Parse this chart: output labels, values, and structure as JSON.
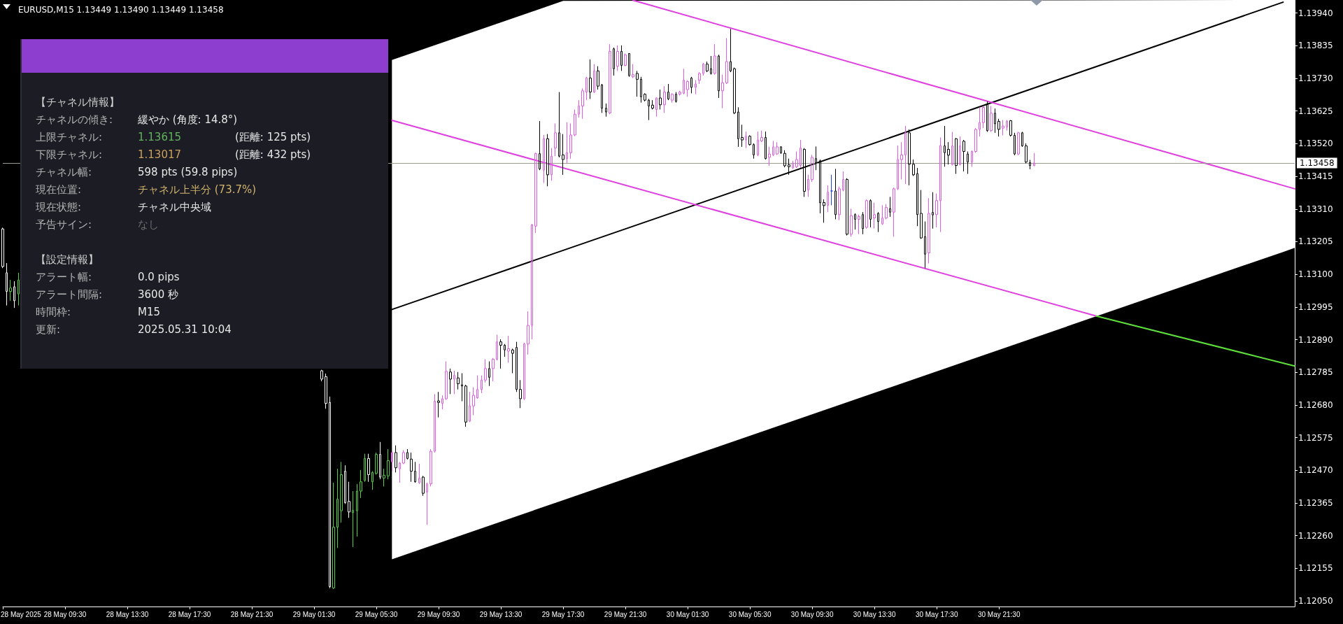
{
  "chart_data": [
    {
      "type": "candlestick",
      "title": "EURUSD,M15 1.13449 1.13490 1.13449 1.13458",
      "line_style": "solid",
      "xlim": [
        "2025-05-28T05:30",
        "2025-05-31T16:30"
      ],
      "xticks": [
        {
          "value": "2025-05-28T05:30",
          "label": "28 May 2025"
        },
        {
          "value": "2025-05-28T09:30",
          "label": "28 May 09:30"
        },
        {
          "value": "2025-05-28T13:30",
          "label": "28 May 13:30"
        },
        {
          "value": "2025-05-28T17:30",
          "label": "28 May 17:30"
        },
        {
          "value": "2025-05-28T21:30",
          "label": "28 May 21:30"
        },
        {
          "value": "2025-05-29T01:30",
          "label": "29 May 01:30"
        },
        {
          "value": "2025-05-29T05:30",
          "label": "29 May 05:30"
        },
        {
          "value": "2025-05-29T09:30",
          "label": "29 May 09:30"
        },
        {
          "value": "2025-05-29T13:30",
          "label": "29 May 13:30"
        },
        {
          "value": "2025-05-29T17:30",
          "label": "29 May 17:30"
        },
        {
          "value": "2025-05-29T21:30",
          "label": "29 May 21:30"
        },
        {
          "value": "2025-05-30T01:30",
          "label": "30 May 01:30"
        },
        {
          "value": "2025-05-30T05:30",
          "label": "30 May 05:30"
        },
        {
          "value": "2025-05-30T09:30",
          "label": "30 May 09:30"
        },
        {
          "value": "2025-05-30T13:30",
          "label": "30 May 13:30"
        },
        {
          "value": "2025-05-30T17:30",
          "label": "30 May 17:30"
        },
        {
          "value": "2025-05-30T21:30",
          "label": "30 May 21:30"
        }
      ],
      "ylim": [
        1.12032,
        1.13982
      ],
      "yticks": [
        {
          "value": 1.1205,
          "label": "1.12050"
        },
        1.12155,
        {
          "value": 1.1226,
          "label": "1.12260"
        },
        1.12365,
        {
          "value": 1.1247,
          "label": "1.12470"
        },
        1.12575,
        {
          "value": 1.1268,
          "label": "1.12680"
        },
        1.12785,
        {
          "value": 1.1289,
          "label": "1.12890"
        },
        1.12995,
        {
          "value": 1.131,
          "label": "1.13100"
        },
        1.13205,
        {
          "value": 1.1331,
          "label": "1.13310"
        },
        1.13415,
        {
          "value": 1.1352,
          "label": "1.13520"
        },
        1.13625,
        {
          "value": 1.1373,
          "label": "1.13730"
        },
        1.13835,
        {
          "value": 1.1394,
          "label": "1.13940"
        }
      ],
      "ref_lines": [
        {
          "axis": "y",
          "value": 1.13458,
          "label": "1.13458",
          "color": "#9c9c8c"
        }
      ],
      "x": [
        "2025-05-28T05:30",
        "2025-05-28T05:45",
        "2025-05-28T06:00",
        "2025-05-28T06:15",
        "2025-05-28T06:30",
        "2025-05-29T02:00",
        "2025-05-29T02:15",
        "2025-05-29T02:30",
        "2025-05-29T02:45",
        "2025-05-29T03:00",
        "2025-05-29T03:15",
        "2025-05-29T03:30",
        "2025-05-29T03:45",
        "2025-05-29T04:00",
        "2025-05-29T04:15",
        "2025-05-29T04:30",
        "2025-05-29T04:45",
        "2025-05-29T05:00",
        "2025-05-29T05:15",
        "2025-05-29T05:30",
        "2025-05-29T05:45",
        "2025-05-29T06:00",
        "2025-05-29T06:15",
        "2025-05-29T06:30",
        "2025-05-29T06:45",
        "2025-05-29T07:00",
        "2025-05-29T07:15",
        "2025-05-29T07:30",
        "2025-05-29T07:45",
        "2025-05-29T08:00",
        "2025-05-29T08:15",
        "2025-05-29T08:30",
        "2025-05-29T08:45",
        "2025-05-29T09:00",
        "2025-05-29T09:15",
        "2025-05-29T09:30",
        "2025-05-29T09:45",
        "2025-05-29T10:00",
        "2025-05-29T10:15",
        "2025-05-29T10:30",
        "2025-05-29T10:45",
        "2025-05-29T11:00",
        "2025-05-29T11:15",
        "2025-05-29T11:30",
        "2025-05-29T11:45",
        "2025-05-29T12:00",
        "2025-05-29T12:15",
        "2025-05-29T12:30",
        "2025-05-29T12:45",
        "2025-05-29T13:00",
        "2025-05-29T13:15",
        "2025-05-29T13:30",
        "2025-05-29T13:45",
        "2025-05-29T14:00",
        "2025-05-29T14:15",
        "2025-05-29T14:30",
        "2025-05-29T14:45",
        "2025-05-29T15:00",
        "2025-05-29T15:15",
        "2025-05-29T15:30",
        "2025-05-29T15:45",
        "2025-05-29T16:00",
        "2025-05-29T16:15",
        "2025-05-29T16:30",
        "2025-05-29T16:45",
        "2025-05-29T17:00",
        "2025-05-29T17:15",
        "2025-05-29T17:30",
        "2025-05-29T17:45",
        "2025-05-29T18:00",
        "2025-05-29T18:15",
        "2025-05-29T18:30",
        "2025-05-29T18:45",
        "2025-05-29T19:00",
        "2025-05-29T19:15",
        "2025-05-29T19:30",
        "2025-05-29T19:45",
        "2025-05-29T20:00",
        "2025-05-29T20:15",
        "2025-05-29T20:30",
        "2025-05-29T20:45",
        "2025-05-29T21:00",
        "2025-05-29T21:15",
        "2025-05-29T21:30",
        "2025-05-29T21:45",
        "2025-05-29T22:00",
        "2025-05-29T22:15",
        "2025-05-29T22:30",
        "2025-05-29T22:45",
        "2025-05-29T23:00",
        "2025-05-29T23:15",
        "2025-05-29T23:30",
        "2025-05-29T23:45",
        "2025-05-30T00:00",
        "2025-05-30T00:15",
        "2025-05-30T00:30",
        "2025-05-30T00:45",
        "2025-05-30T01:00",
        "2025-05-30T01:15",
        "2025-05-30T01:30",
        "2025-05-30T01:45",
        "2025-05-30T02:00",
        "2025-05-30T02:15",
        "2025-05-30T02:30",
        "2025-05-30T02:45",
        "2025-05-30T03:00",
        "2025-05-30T03:15",
        "2025-05-30T03:30",
        "2025-05-30T03:45",
        "2025-05-30T04:00",
        "2025-05-30T04:15",
        "2025-05-30T04:30",
        "2025-05-30T04:45",
        "2025-05-30T05:00",
        "2025-05-30T05:15",
        "2025-05-30T05:30",
        "2025-05-30T05:45",
        "2025-05-30T06:00",
        "2025-05-30T06:15",
        "2025-05-30T06:30",
        "2025-05-30T06:45",
        "2025-05-30T07:00",
        "2025-05-30T07:15",
        "2025-05-30T07:30",
        "2025-05-30T07:45",
        "2025-05-30T08:00",
        "2025-05-30T08:15",
        "2025-05-30T08:30",
        "2025-05-30T08:45",
        "2025-05-30T09:00",
        "2025-05-30T09:15",
        "2025-05-30T09:30",
        "2025-05-30T09:45",
        "2025-05-30T10:00",
        "2025-05-30T10:15",
        "2025-05-30T10:30",
        "2025-05-30T10:45",
        "2025-05-30T11:00",
        "2025-05-30T11:15",
        "2025-05-30T11:30",
        "2025-05-30T11:45",
        "2025-05-30T12:00",
        "2025-05-30T12:15",
        "2025-05-30T12:30",
        "2025-05-30T12:45",
        "2025-05-30T13:00",
        "2025-05-30T13:15",
        "2025-05-30T13:30",
        "2025-05-30T13:45",
        "2025-05-30T14:00",
        "2025-05-30T14:15",
        "2025-05-30T14:30",
        "2025-05-30T14:45",
        "2025-05-30T15:00",
        "2025-05-30T15:15",
        "2025-05-30T15:30",
        "2025-05-30T15:45",
        "2025-05-30T16:00",
        "2025-05-30T16:15",
        "2025-05-30T16:30",
        "2025-05-30T16:45",
        "2025-05-30T17:00",
        "2025-05-30T17:15",
        "2025-05-30T17:30",
        "2025-05-30T17:45",
        "2025-05-30T18:00",
        "2025-05-30T18:15",
        "2025-05-30T18:30",
        "2025-05-30T18:45",
        "2025-05-30T19:00",
        "2025-05-30T19:15",
        "2025-05-30T19:30",
        "2025-05-30T19:45",
        "2025-05-30T20:00",
        "2025-05-30T20:15",
        "2025-05-30T20:30",
        "2025-05-30T20:45",
        "2025-05-30T21:00",
        "2025-05-30T21:15",
        "2025-05-30T21:30",
        "2025-05-30T21:45",
        "2025-05-30T22:00",
        "2025-05-30T22:15",
        "2025-05-30T22:30",
        "2025-05-30T22:45",
        "2025-05-30T23:00",
        "2025-05-30T23:15",
        "2025-05-30T23:30",
        "2025-05-30T23:45"
      ],
      "ohlc": [
        [
          1.13246,
          1.1325,
          1.1312,
          1.13125
        ],
        [
          1.13105,
          1.13136,
          1.13,
          1.13045
        ],
        [
          1.13045,
          1.13082,
          1.13015,
          1.13056
        ],
        [
          1.1306,
          1.13078,
          1.12992,
          1.13015
        ],
        [
          1.13037,
          1.13105,
          1.13,
          1.13082
        ],
        [
          1.1279,
          1.12793,
          1.12756,
          1.12763
        ],
        [
          1.12771,
          1.12781,
          1.12668,
          1.12685
        ],
        [
          1.12688,
          1.12707,
          1.12091,
          1.12096
        ],
        [
          1.12092,
          1.1243,
          1.12088,
          1.12287
        ],
        [
          1.12287,
          1.12475,
          1.1222,
          1.12377
        ],
        [
          1.1234,
          1.12497,
          1.12302,
          1.12456
        ],
        [
          1.12467,
          1.12486,
          1.12362,
          1.12366
        ],
        [
          1.1237,
          1.12433,
          1.12317,
          1.12336
        ],
        [
          1.12334,
          1.12403,
          1.12223,
          1.12341
        ],
        [
          1.1234,
          1.12426,
          1.12257,
          1.12403
        ],
        [
          1.12403,
          1.12471,
          1.12381,
          1.12433
        ],
        [
          1.12437,
          1.12523,
          1.12433,
          1.12508
        ],
        [
          1.12508,
          1.12523,
          1.12433,
          1.12456
        ],
        [
          1.12433,
          1.12467,
          1.12407,
          1.12463
        ],
        [
          1.1246,
          1.12527,
          1.12456,
          1.12521
        ],
        [
          1.12521,
          1.12561,
          1.12441,
          1.12448
        ],
        [
          1.12445,
          1.12475,
          1.12418,
          1.12454
        ],
        [
          1.12452,
          1.12538,
          1.12441,
          1.12501
        ],
        [
          1.12497,
          1.12531,
          1.12467,
          1.12527
        ],
        [
          1.12527,
          1.1255,
          1.12463,
          1.12478
        ],
        [
          1.12475,
          1.12497,
          1.1243,
          1.12493
        ],
        [
          1.12493,
          1.12535,
          1.1249,
          1.12527
        ],
        [
          1.12527,
          1.12538,
          1.12505,
          1.12508
        ],
        [
          1.12506,
          1.12527,
          1.12433,
          1.12467
        ],
        [
          1.12467,
          1.12497,
          1.1243,
          1.12433
        ],
        [
          1.1243,
          1.12491,
          1.12426,
          1.12445
        ],
        [
          1.12448,
          1.12452,
          1.12388,
          1.12396
        ],
        [
          1.124,
          1.1243,
          1.12295,
          1.12426
        ],
        [
          1.12426,
          1.12538,
          1.12418,
          1.12531
        ],
        [
          1.12531,
          1.12715,
          1.12527,
          1.12692
        ],
        [
          1.12693,
          1.12722,
          1.1264,
          1.12688
        ],
        [
          1.12685,
          1.12711,
          1.12666,
          1.127
        ],
        [
          1.127,
          1.1282,
          1.12696,
          1.12788
        ],
        [
          1.12786,
          1.12797,
          1.12715,
          1.12763
        ],
        [
          1.12763,
          1.1279,
          1.12715,
          1.12775
        ],
        [
          1.12767,
          1.12786,
          1.1273,
          1.12748
        ],
        [
          1.12745,
          1.12782,
          1.12692,
          1.12741
        ],
        [
          1.12741,
          1.12745,
          1.1261,
          1.12625
        ],
        [
          1.12628,
          1.12722,
          1.12625,
          1.12677
        ],
        [
          1.12677,
          1.12737,
          1.12647,
          1.12711
        ],
        [
          1.12703,
          1.12775,
          1.127,
          1.1273
        ],
        [
          1.1273,
          1.12775,
          1.12718,
          1.1276
        ],
        [
          1.1276,
          1.12827,
          1.12752,
          1.12797
        ],
        [
          1.12797,
          1.1282,
          1.12741,
          1.12769
        ],
        [
          1.12797,
          1.12831,
          1.12756,
          1.12827
        ],
        [
          1.12827,
          1.12906,
          1.12823,
          1.12883
        ],
        [
          1.12883,
          1.12891,
          1.12797,
          1.12872
        ],
        [
          1.12872,
          1.12876,
          1.12835,
          1.12857
        ],
        [
          1.12853,
          1.12902,
          1.12816,
          1.12861
        ],
        [
          1.12857,
          1.12861,
          1.12782,
          1.12846
        ],
        [
          1.12865,
          1.12883,
          1.12722,
          1.1273
        ],
        [
          1.1273,
          1.1276,
          1.1267,
          1.127
        ],
        [
          1.127,
          1.1288,
          1.12696,
          1.12876
        ],
        [
          1.12876,
          1.12981,
          1.12842,
          1.12936
        ],
        [
          1.12936,
          1.13262,
          1.12891,
          1.13259
        ],
        [
          1.13255,
          1.13491,
          1.13233,
          1.13488
        ],
        [
          1.13488,
          1.13593,
          1.13435,
          1.13439
        ],
        [
          1.13435,
          1.13548,
          1.13394,
          1.13536
        ],
        [
          1.13536,
          1.13551,
          1.13383,
          1.1342
        ],
        [
          1.1342,
          1.13506,
          1.13401,
          1.1348
        ],
        [
          1.13506,
          1.13585,
          1.1348,
          1.13555
        ],
        [
          1.13555,
          1.13686,
          1.13476,
          1.1348
        ],
        [
          1.13484,
          1.13551,
          1.1342,
          1.13469
        ],
        [
          1.13472,
          1.13589,
          1.13457,
          1.13491
        ],
        [
          1.13491,
          1.13585,
          1.13472,
          1.13548
        ],
        [
          1.13548,
          1.1363,
          1.13544,
          1.13615
        ],
        [
          1.13615,
          1.1366,
          1.13604,
          1.13641
        ],
        [
          1.13641,
          1.13698,
          1.136,
          1.1369
        ],
        [
          1.13686,
          1.13735,
          1.1366,
          1.13731
        ],
        [
          1.13731,
          1.13791,
          1.13664,
          1.13686
        ],
        [
          1.13686,
          1.13776,
          1.13683,
          1.13754
        ],
        [
          1.13754,
          1.13769,
          1.13694,
          1.13705
        ],
        [
          1.13709,
          1.13712,
          1.13619,
          1.13634
        ],
        [
          1.13634,
          1.13649,
          1.13607,
          1.13622
        ],
        [
          1.13619,
          1.1384,
          1.13615,
          1.13817
        ],
        [
          1.13825,
          1.13829,
          1.13739,
          1.13761
        ],
        [
          1.13769,
          1.13836,
          1.13754,
          1.13817
        ],
        [
          1.13817,
          1.13836,
          1.13754,
          1.13772
        ],
        [
          1.13772,
          1.1381,
          1.13769,
          1.13806
        ],
        [
          1.1381,
          1.13811,
          1.13735,
          1.13739
        ],
        [
          1.13735,
          1.13776,
          1.13731,
          1.13742
        ],
        [
          1.13746,
          1.13754,
          1.13671,
          1.13727
        ],
        [
          1.13727,
          1.13735,
          1.13652,
          1.13671
        ],
        [
          1.13679,
          1.13682,
          1.13656,
          1.1366
        ],
        [
          1.1366,
          1.13664,
          1.13596,
          1.13641
        ],
        [
          1.13644,
          1.1366,
          1.1363,
          1.13634
        ],
        [
          1.1363,
          1.13669,
          1.13607,
          1.13667
        ],
        [
          1.13667,
          1.13694,
          1.1363,
          1.13645
        ],
        [
          1.13645,
          1.13705,
          1.13619,
          1.13686
        ],
        [
          1.13686,
          1.13712,
          1.1366,
          1.13664
        ],
        [
          1.1366,
          1.13682,
          1.13652,
          1.13679
        ],
        [
          1.13679,
          1.13686,
          1.13652,
          1.13656
        ],
        [
          1.13679,
          1.1369,
          1.13675,
          1.13686
        ],
        [
          1.13682,
          1.13761,
          1.13679,
          1.13724
        ],
        [
          1.13694,
          1.13724,
          1.13671,
          1.1372
        ],
        [
          1.13731,
          1.13735,
          1.13682,
          1.13701
        ],
        [
          1.13701,
          1.13724,
          1.13679,
          1.13712
        ],
        [
          1.13724,
          1.1375,
          1.13712,
          1.13746
        ],
        [
          1.13746,
          1.1378,
          1.13739,
          1.13776
        ],
        [
          1.13776,
          1.13784,
          1.1375,
          1.13754
        ],
        [
          1.13761,
          1.13802,
          1.13742,
          1.13746
        ],
        [
          1.13746,
          1.1384,
          1.13742,
          1.13802
        ],
        [
          1.13802,
          1.13806,
          1.13667,
          1.1369
        ],
        [
          1.1369,
          1.13742,
          1.13634,
          1.13716
        ],
        [
          1.13716,
          1.13859,
          1.13712,
          1.13784
        ],
        [
          1.13784,
          1.13889,
          1.1375,
          1.13754
        ],
        [
          1.13761,
          1.13765,
          1.13615,
          1.13619
        ],
        [
          1.13622,
          1.13637,
          1.1351,
          1.13536
        ],
        [
          1.1354,
          1.13581,
          1.1351,
          1.13532
        ],
        [
          1.13532,
          1.13559,
          1.13506,
          1.13544
        ],
        [
          1.13544,
          1.13547,
          1.13514,
          1.13517
        ],
        [
          1.13517,
          1.13521,
          1.13472,
          1.13484
        ],
        [
          1.13484,
          1.13559,
          1.1348,
          1.13532
        ],
        [
          1.13529,
          1.13562,
          1.13525,
          1.1354
        ],
        [
          1.1354,
          1.13559,
          1.13469,
          1.13472
        ],
        [
          1.13476,
          1.1351,
          1.13449,
          1.13487
        ],
        [
          1.13484,
          1.13529,
          1.1348,
          1.1351
        ],
        [
          1.13487,
          1.13525,
          1.13484,
          1.1351
        ],
        [
          1.1351,
          1.13511,
          1.13487,
          1.13491
        ],
        [
          1.13489,
          1.13499,
          1.13444,
          1.13449
        ],
        [
          1.13452,
          1.13472,
          1.1342,
          1.13446
        ],
        [
          1.13442,
          1.13465,
          1.13439,
          1.13457
        ],
        [
          1.13446,
          1.13495,
          1.13442,
          1.13469
        ],
        [
          1.1345,
          1.13532,
          1.13442,
          1.13506
        ],
        [
          1.13502,
          1.13506,
          1.13349,
          1.13367
        ],
        [
          1.13371,
          1.1342,
          1.13349,
          1.13405
        ],
        [
          1.13405,
          1.13484,
          1.13397,
          1.13476
        ],
        [
          1.13472,
          1.13511,
          1.13435,
          1.13457
        ],
        [
          1.13465,
          1.13469,
          1.13296,
          1.1333
        ],
        [
          1.13331,
          1.13341,
          1.13266,
          1.13321
        ],
        [
          1.13322,
          1.13386,
          1.133,
          1.13364
        ],
        [
          1.13368,
          1.1342,
          1.13322,
          1.13368
        ],
        [
          1.13368,
          1.13439,
          1.13277,
          1.13292
        ],
        [
          1.13292,
          1.13382,
          1.13274,
          1.13375
        ],
        [
          1.13371,
          1.13431,
          1.13367,
          1.13405
        ],
        [
          1.13405,
          1.13409,
          1.13225,
          1.13229
        ],
        [
          1.13229,
          1.13311,
          1.13221,
          1.13289
        ],
        [
          1.13292,
          1.13296,
          1.13244,
          1.13277
        ],
        [
          1.13277,
          1.13292,
          1.13229,
          1.13286
        ],
        [
          1.13292,
          1.133,
          1.13229,
          1.13247
        ],
        [
          1.13251,
          1.13341,
          1.13247,
          1.13337
        ],
        [
          1.13337,
          1.13341,
          1.13251,
          1.13277
        ],
        [
          1.13281,
          1.1333,
          1.13247,
          1.13292
        ],
        [
          1.13296,
          1.133,
          1.13236,
          1.1327
        ],
        [
          1.13262,
          1.13322,
          1.13259,
          1.13281
        ],
        [
          1.13281,
          1.13326,
          1.13277,
          1.13315
        ],
        [
          1.13311,
          1.13349,
          1.13285,
          1.133
        ],
        [
          1.133,
          1.13379,
          1.13221,
          1.13375
        ],
        [
          1.13375,
          1.13514,
          1.13371,
          1.13469
        ],
        [
          1.13469,
          1.13525,
          1.13405,
          1.13484
        ],
        [
          1.13484,
          1.13577,
          1.1339,
          1.13555
        ],
        [
          1.13555,
          1.13566,
          1.13386,
          1.13454
        ],
        [
          1.13454,
          1.13469,
          1.13416,
          1.1342
        ],
        [
          1.13424,
          1.13442,
          1.13255,
          1.13292
        ],
        [
          1.13296,
          1.13371,
          1.13214,
          1.13217
        ],
        [
          1.13221,
          1.1327,
          1.1312,
          1.13165
        ],
        [
          1.13169,
          1.13345,
          1.13135,
          1.13296
        ],
        [
          1.13299,
          1.13364,
          1.13247,
          1.13291
        ],
        [
          1.13292,
          1.1336,
          1.13251,
          1.13337
        ],
        [
          1.13337,
          1.1354,
          1.13236,
          1.13514
        ],
        [
          1.13513,
          1.13577,
          1.13446,
          1.13491
        ],
        [
          1.13502,
          1.13525,
          1.13453,
          1.13483
        ],
        [
          1.13453,
          1.13558,
          1.1345,
          1.13513
        ],
        [
          1.13536,
          1.13538,
          1.13423,
          1.1345
        ],
        [
          1.13453,
          1.13543,
          1.1345,
          1.13513
        ],
        [
          1.13528,
          1.13532,
          1.13431,
          1.13495
        ],
        [
          1.13487,
          1.13495,
          1.13423,
          1.13461
        ],
        [
          1.13461,
          1.13498,
          1.13446,
          1.13495
        ],
        [
          1.13495,
          1.1357,
          1.13491,
          1.13566
        ],
        [
          1.13566,
          1.13637,
          1.13543,
          1.13588
        ],
        [
          1.13588,
          1.13641,
          1.1357,
          1.13637
        ],
        [
          1.13648,
          1.13656,
          1.13558,
          1.13562
        ],
        [
          1.13562,
          1.13641,
          1.13558,
          1.13618
        ],
        [
          1.13618,
          1.13633,
          1.13555,
          1.13584
        ],
        [
          1.13592,
          1.136,
          1.13543,
          1.13566
        ],
        [
          1.1357,
          1.13596,
          1.13547,
          1.13577
        ],
        [
          1.13573,
          1.13596,
          1.13562,
          1.13592
        ],
        [
          1.13594,
          1.13596,
          1.13543,
          1.13547
        ],
        [
          1.13547,
          1.13555,
          1.13483,
          1.13487
        ],
        [
          1.13487,
          1.13558,
          1.13483,
          1.13555
        ],
        [
          1.13555,
          1.13558,
          1.1351,
          1.13513
        ],
        [
          1.13513,
          1.13521,
          1.13457,
          1.13461
        ],
        [
          1.13459,
          1.13468,
          1.13438,
          1.1345
        ],
        [
          1.13449,
          1.1349,
          1.13449,
          1.13458
        ]
      ],
      "colors": [
        "#ffffff",
        "#ffffff",
        "#4fd23c",
        "#ffffff",
        "#4fd23c",
        "#ffffff",
        "#ffffff",
        "#ffffff",
        "#4fd23c",
        "#4fd23c",
        "#4fd23c",
        "#ffffff",
        "#ffffff",
        "#4fd23c",
        "#4fd23c",
        "#4fd23c",
        "#4fd23c",
        "#ffffff",
        "#4fd23c",
        "#4fd23c",
        "#ffffff",
        "#4fd23c",
        "#4fd23c",
        "#e05ce6",
        "#000000",
        "#e05ce6",
        "#e05ce6",
        "#000000",
        "#000000",
        "#000000",
        "#e05ce6",
        "#000000",
        "#e05ce6",
        "#e05ce6",
        "#e05ce6",
        "#000000",
        "#e05ce6",
        "#e05ce6",
        "#000000",
        "#e05ce6",
        "#000000",
        "#000000",
        "#000000",
        "#e05ce6",
        "#e05ce6",
        "#e05ce6",
        "#e05ce6",
        "#e05ce6",
        "#000000",
        "#e05ce6",
        "#e05ce6",
        "#000000",
        "#000000",
        "#e05ce6",
        "#000000",
        "#000000",
        "#000000",
        "#e05ce6",
        "#e05ce6",
        "#e05ce6",
        "#e05ce6",
        "#000000",
        "#e05ce6",
        "#000000",
        "#e05ce6",
        "#e05ce6",
        "#000000",
        "#000000",
        "#e05ce6",
        "#e05ce6",
        "#e05ce6",
        "#e05ce6",
        "#e05ce6",
        "#e05ce6",
        "#000000",
        "#e05ce6",
        "#000000",
        "#000000",
        "#000000",
        "#e05ce6",
        "#000000",
        "#e05ce6",
        "#000000",
        "#e05ce6",
        "#000000",
        "#e05ce6",
        "#000000",
        "#000000",
        "#000000",
        "#000000",
        "#000000",
        "#e05ce6",
        "#000000",
        "#e05ce6",
        "#000000",
        "#e05ce6",
        "#000000",
        "#e05ce6",
        "#e05ce6",
        "#e05ce6",
        "#000000",
        "#e05ce6",
        "#e05ce6",
        "#e05ce6",
        "#000000",
        "#000000",
        "#e05ce6",
        "#000000",
        "#e05ce6",
        "#e05ce6",
        "#000000",
        "#000000",
        "#000000",
        "#000000",
        "#e05ce6",
        "#000000",
        "#000000",
        "#e05ce6",
        "#e05ce6",
        "#000000",
        "#e05ce6",
        "#e05ce6",
        "#e05ce6",
        "#000000",
        "#000000",
        "#000000",
        "#e05ce6",
        "#e05ce6",
        "#e05ce6",
        "#000000",
        "#e05ce6",
        "#e05ce6",
        "#000000",
        "#000000",
        "#000000",
        "#e05ce6",
        "#2244dd",
        "#000000",
        "#e05ce6",
        "#e05ce6",
        "#000000",
        "#e05ce6",
        "#000000",
        "#e05ce6",
        "#000000",
        "#e05ce6",
        "#000000",
        "#e05ce6",
        "#000000",
        "#e05ce6",
        "#e05ce6",
        "#000000",
        "#e05ce6",
        "#e05ce6",
        "#e05ce6",
        "#e05ce6",
        "#000000",
        "#000000",
        "#000000",
        "#000000",
        "#000000",
        "#e05ce6",
        "#000000",
        "#e05ce6",
        "#e05ce6",
        "#000000",
        "#000000",
        "#e05ce6",
        "#000000",
        "#e05ce6",
        "#000000",
        "#000000",
        "#e05ce6",
        "#e05ce6",
        "#e05ce6",
        "#e05ce6",
        "#000000",
        "#e05ce6",
        "#000000",
        "#000000",
        "#e05ce6",
        "#e05ce6",
        "#000000",
        "#000000",
        "#e05ce6",
        "#000000",
        "#000000",
        "#000000",
        "#e05ce6"
      ],
      "series": [
        {
          "type": "line",
          "color": "#000000",
          "x": [
            "2025-05-29T06:30",
            "2025-05-29T17:30",
            "2025-05-31T15:45",
            "2025-05-31T16:30"
          ],
          "values": [
            1.12987,
            1.13177,
            1.13975,
            null
          ],
          "lower": [
            1.12184,
            1.12374,
            1.13172,
            1.13185
          ],
          "upper": [
            1.13789,
            1.13979,
            1.13982,
            1.13982
          ]
        },
        {
          "type": "line",
          "color": "#e040e0",
          "x": [
            "2025-05-29T22:00",
            "2025-05-31T16:30"
          ],
          "values": [
            1.13981,
            1.13375
          ]
        },
        {
          "type": "line",
          "color": "#e040e0",
          "x": [
            "2025-05-29T06:30",
            "2025-05-31T03:45"
          ],
          "values": [
            1.13595,
            1.12966
          ]
        },
        {
          "type": "line",
          "color": "#5ee03c",
          "x": [
            "2025-05-31T03:45",
            "2025-05-31T16:30"
          ],
          "values": [
            1.12966,
            1.12805
          ]
        }
      ]
    },
    {
      "type": "other",
      "annotations": [
        "【チャネル情報】",
        "チャネルの傾き:",
        "緩やか (角度: 14.8°)",
        "上限チャネル:",
        "1.13615",
        "(距離: 125 pts)",
        "下限チャネル:",
        "1.13017",
        "(距離: 432 pts)",
        "チャネル幅:",
        "598 pts (59.8 pips)",
        "現在位置:",
        "チャネル上半分 (73.7%)",
        "現在状態:",
        "チャネル中央域",
        "予告サイン:",
        "なし",
        "【設定情報】",
        "アラート幅:",
        "0.0 pips",
        "アラート間隔:",
        "3600 秒",
        "時間枠:",
        "M15",
        "更新:",
        "2025.05.31 10:04"
      ]
    }
  ]
}
